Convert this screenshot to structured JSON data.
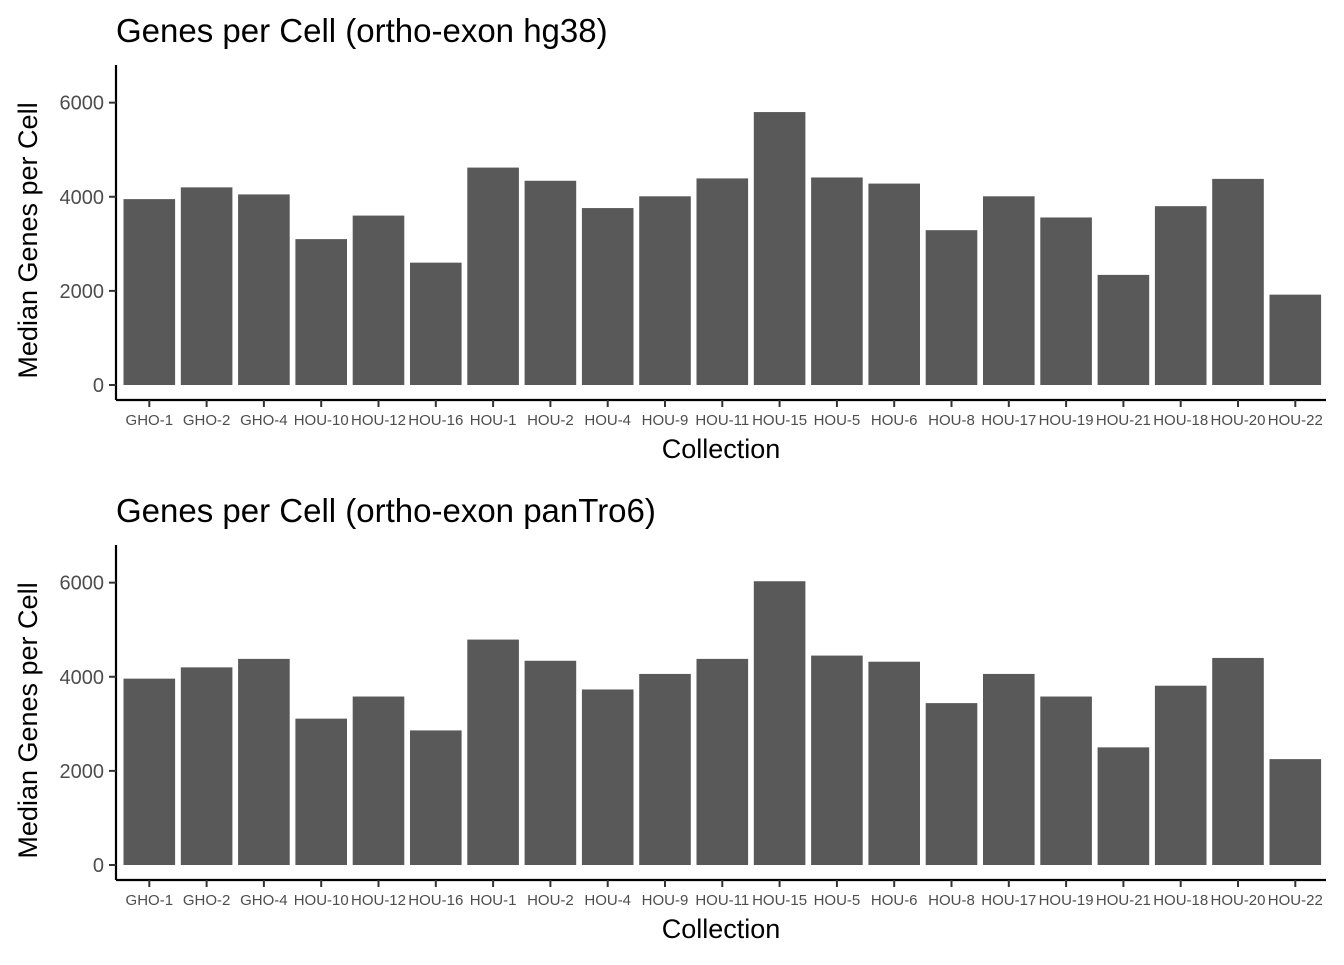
{
  "chart_data": [
    {
      "type": "bar",
      "title": "Genes per Cell (ortho-exon hg38)",
      "xlabel": "Collection",
      "ylabel": "Median Genes per Cell",
      "categories": [
        "GHO-1",
        "GHO-2",
        "GHO-4",
        "HOU-10",
        "HOU-12",
        "HOU-16",
        "HOU-1",
        "HOU-2",
        "HOU-4",
        "HOU-9",
        "HOU-11",
        "HOU-15",
        "HOU-5",
        "HOU-6",
        "HOU-8",
        "HOU-17",
        "HOU-19",
        "HOU-21",
        "HOU-18",
        "HOU-20",
        "HOU-22"
      ],
      "values": [
        3950,
        4200,
        4050,
        3100,
        3600,
        2600,
        4620,
        4340,
        3760,
        4010,
        4390,
        5800,
        4410,
        4280,
        3290,
        4010,
        3560,
        2340,
        3800,
        4380,
        1920
      ],
      "ylim": [
        0,
        6800
      ],
      "yticks": [
        0,
        2000,
        4000,
        6000
      ],
      "bar_color": "#595959",
      "grid": false
    },
    {
      "type": "bar",
      "title": "Genes per Cell (ortho-exon panTro6)",
      "xlabel": "Collection",
      "ylabel": "Median Genes per Cell",
      "categories": [
        "GHO-1",
        "GHO-2",
        "GHO-4",
        "HOU-10",
        "HOU-12",
        "HOU-16",
        "HOU-1",
        "HOU-2",
        "HOU-4",
        "HOU-9",
        "HOU-11",
        "HOU-15",
        "HOU-5",
        "HOU-6",
        "HOU-8",
        "HOU-17",
        "HOU-19",
        "HOU-21",
        "HOU-18",
        "HOU-20",
        "HOU-22"
      ],
      "values": [
        3960,
        4200,
        4380,
        3110,
        3580,
        2860,
        4790,
        4340,
        3730,
        4060,
        4380,
        6030,
        4450,
        4320,
        3440,
        4060,
        3580,
        2500,
        3810,
        4400,
        2250
      ],
      "ylim": [
        0,
        6800
      ],
      "yticks": [
        0,
        2000,
        4000,
        6000
      ],
      "bar_color": "#595959",
      "grid": false
    }
  ]
}
